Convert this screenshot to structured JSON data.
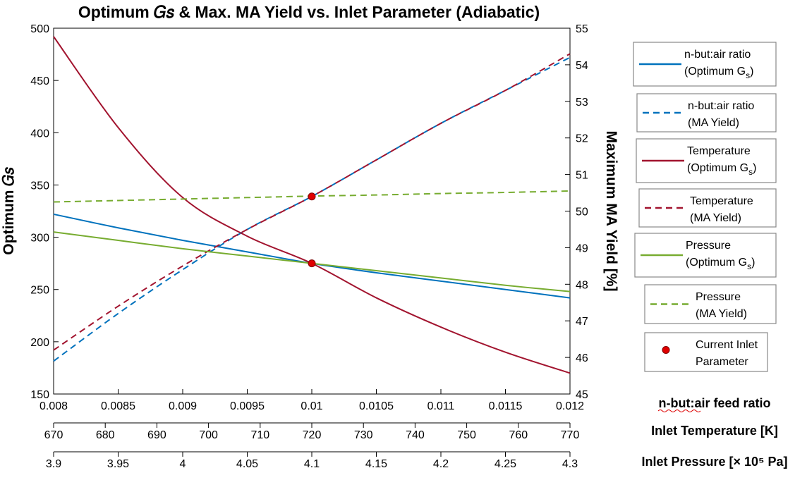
{
  "chart_data": {
    "type": "line",
    "title": "Optimum 𝐺𝑠 & Max. MA Yield vs. Inlet Parameter (Adiabatic)",
    "ylabel_left": "Optimum 𝐺𝑠",
    "ylabel_right": "Maximum MA Yield [%]",
    "ylim_left": [
      150,
      500
    ],
    "ylim_right": [
      45,
      55
    ],
    "yticks_left": [
      "150",
      "200",
      "250",
      "300",
      "350",
      "400",
      "450",
      "500"
    ],
    "yticks_right": [
      "45",
      "46",
      "47",
      "48",
      "49",
      "50",
      "51",
      "52",
      "53",
      "54",
      "55"
    ],
    "x_axes": [
      {
        "label": "n-but:air feed ratio",
        "range": [
          0.008,
          0.012
        ],
        "ticks": [
          "0.008",
          "0.0085",
          "0.009",
          "0.0095",
          "0.01",
          "0.0105",
          "0.011",
          "0.0115",
          "0.012"
        ]
      },
      {
        "label": "Inlet Temperature [K]",
        "range": [
          670,
          770
        ],
        "ticks": [
          "670",
          "680",
          "690",
          "700",
          "710",
          "720",
          "730",
          "740",
          "750",
          "760",
          "770"
        ]
      },
      {
        "label": "Inlet Pressure [× 10⁵ Pa]",
        "range": [
          3.9,
          4.3
        ],
        "ticks": [
          "3.9",
          "3.95",
          "4",
          "4.05",
          "4.1",
          "4.15",
          "4.2",
          "4.25",
          "4.3"
        ]
      }
    ],
    "x_norm": [
      0,
      0.125,
      0.25,
      0.375,
      0.5,
      0.625,
      0.75,
      0.875,
      1.0
    ],
    "series": [
      {
        "name": "n-but:air ratio (Optimum Gs)",
        "axis": "left",
        "color": "#0072BD",
        "dash": false,
        "values": [
          322,
          309,
          297,
          286,
          275,
          266,
          258,
          250,
          242
        ]
      },
      {
        "name": "n-but:air ratio (MA Yield)",
        "axis": "right",
        "color": "#0072BD",
        "dash": true,
        "values": [
          45.9,
          47.2,
          48.4,
          49.5,
          50.4,
          51.4,
          52.4,
          53.3,
          54.2
        ]
      },
      {
        "name": "Temperature (Optimum Gs)",
        "axis": "left",
        "color": "#A2142F",
        "dash": false,
        "values": [
          492,
          405,
          338,
          301,
          275,
          242,
          214,
          190,
          170
        ]
      },
      {
        "name": "Temperature (MA Yield)",
        "axis": "right",
        "color": "#A2142F",
        "dash": true,
        "values": [
          46.2,
          47.4,
          48.5,
          49.5,
          50.4,
          51.4,
          52.4,
          53.3,
          54.3
        ]
      },
      {
        "name": "Pressure (Optimum Gs)",
        "axis": "left",
        "color": "#77AC30",
        "dash": false,
        "values": [
          305,
          297,
          289,
          282,
          275,
          268,
          261,
          254,
          248
        ]
      },
      {
        "name": "Pressure (MA Yield)",
        "axis": "right",
        "color": "#77AC30",
        "dash": true,
        "values": [
          50.25,
          50.29,
          50.33,
          50.37,
          50.41,
          50.44,
          50.48,
          50.51,
          50.55
        ]
      }
    ],
    "current_point": {
      "name": "Current Inlet Parameter",
      "x_norm": 0.5,
      "left_value": 275,
      "right_value": 50.4,
      "color": "#E00000"
    },
    "legend": [
      {
        "line1": "n-but:air ratio",
        "line2": "(Optimum G",
        "sub": "s",
        "tail": ")",
        "color": "#0072BD",
        "dash": false
      },
      {
        "line1": "n-but:air ratio",
        "line2": "(MA Yield)",
        "sub": "",
        "tail": "",
        "color": "#0072BD",
        "dash": true
      },
      {
        "line1": "Temperature",
        "line2": "(Optimum G",
        "sub": "s",
        "tail": ")",
        "color": "#A2142F",
        "dash": false
      },
      {
        "line1": "Temperature",
        "line2": "(MA Yield)",
        "sub": "",
        "tail": "",
        "color": "#A2142F",
        "dash": true
      },
      {
        "line1": "Pressure",
        "line2": "(Optimum G",
        "sub": "s",
        "tail": ")",
        "color": "#77AC30",
        "dash": false
      },
      {
        "line1": "Pressure",
        "line2": "(MA Yield)",
        "sub": "",
        "tail": "",
        "color": "#77AC30",
        "dash": true
      },
      {
        "line1": "Current Inlet",
        "line2": "Parameter",
        "sub": "",
        "tail": "",
        "color": "#E00000",
        "marker": true
      }
    ],
    "legend_placement": "right",
    "grid": false
  }
}
